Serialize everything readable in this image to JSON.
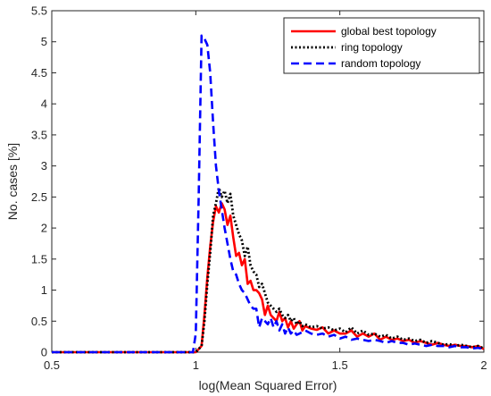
{
  "chart_data": {
    "type": "line",
    "title": "",
    "xlabel": "log(Mean Squared Error)",
    "ylabel": "No. cases [%]",
    "xlim": [
      0.5,
      2
    ],
    "ylim": [
      0,
      5.5
    ],
    "xticks": [
      0.5,
      1,
      1.5,
      2
    ],
    "xtick_labels": [
      "0.5",
      "1",
      "1.5",
      "2"
    ],
    "yticks": [
      0,
      0.5,
      1,
      1.5,
      2,
      2.5,
      3,
      3.5,
      4,
      4.5,
      5,
      5.5
    ],
    "ytick_labels": [
      "0",
      "0.5",
      "1",
      "1.5",
      "2",
      "2.5",
      "3",
      "3.5",
      "4",
      "4.5",
      "5",
      "5.5"
    ],
    "grid": false,
    "legend_position": "top-right",
    "series": [
      {
        "name": "global best topology",
        "color": "#ff0000",
        "style": "solid",
        "x": [
          0.5,
          1.0,
          1.02,
          1.03,
          1.04,
          1.05,
          1.06,
          1.07,
          1.08,
          1.09,
          1.1,
          1.11,
          1.12,
          1.13,
          1.14,
          1.15,
          1.16,
          1.17,
          1.18,
          1.19,
          1.2,
          1.21,
          1.22,
          1.23,
          1.24,
          1.25,
          1.26,
          1.27,
          1.28,
          1.29,
          1.3,
          1.31,
          1.32,
          1.33,
          1.34,
          1.35,
          1.36,
          1.37,
          1.38,
          1.4,
          1.42,
          1.44,
          1.46,
          1.48,
          1.5,
          1.52,
          1.54,
          1.56,
          1.58,
          1.6,
          1.62,
          1.64,
          1.66,
          1.68,
          1.7,
          1.72,
          1.74,
          1.76,
          1.78,
          1.8,
          1.82,
          1.84,
          1.86,
          1.88,
          1.9,
          1.92,
          1.94,
          1.96,
          1.98,
          2.0
        ],
        "y": [
          0,
          0,
          0.1,
          0.6,
          1.2,
          1.7,
          2.1,
          2.35,
          2.25,
          2.4,
          2.3,
          2.05,
          2.2,
          1.85,
          1.55,
          1.6,
          1.4,
          1.5,
          1.1,
          1.15,
          1.0,
          1.0,
          0.95,
          0.85,
          0.6,
          0.75,
          0.6,
          0.55,
          0.5,
          0.65,
          0.5,
          0.55,
          0.4,
          0.5,
          0.38,
          0.45,
          0.5,
          0.35,
          0.42,
          0.38,
          0.36,
          0.4,
          0.3,
          0.35,
          0.3,
          0.3,
          0.35,
          0.25,
          0.3,
          0.25,
          0.3,
          0.2,
          0.25,
          0.2,
          0.22,
          0.18,
          0.2,
          0.15,
          0.18,
          0.15,
          0.12,
          0.15,
          0.12,
          0.1,
          0.12,
          0.1,
          0.1,
          0.08,
          0.1,
          0.05
        ]
      },
      {
        "name": "ring topology",
        "color": "#000000",
        "style": "dotted",
        "x": [
          0.5,
          1.0,
          1.02,
          1.03,
          1.04,
          1.05,
          1.06,
          1.07,
          1.08,
          1.09,
          1.1,
          1.11,
          1.12,
          1.13,
          1.14,
          1.15,
          1.16,
          1.17,
          1.18,
          1.19,
          1.2,
          1.21,
          1.22,
          1.23,
          1.24,
          1.25,
          1.26,
          1.27,
          1.28,
          1.29,
          1.3,
          1.31,
          1.32,
          1.33,
          1.34,
          1.35,
          1.36,
          1.37,
          1.38,
          1.4,
          1.42,
          1.44,
          1.46,
          1.48,
          1.5,
          1.52,
          1.54,
          1.56,
          1.58,
          1.6,
          1.62,
          1.64,
          1.66,
          1.68,
          1.7,
          1.72,
          1.74,
          1.76,
          1.78,
          1.8,
          1.82,
          1.84,
          1.86,
          1.88,
          1.9,
          1.92,
          1.94,
          1.96,
          1.98,
          2.0
        ],
        "y": [
          0,
          0,
          0.1,
          0.5,
          1.1,
          1.6,
          2.2,
          2.4,
          2.65,
          2.5,
          2.6,
          2.4,
          2.55,
          2.2,
          2.05,
          1.9,
          1.8,
          1.55,
          1.7,
          1.4,
          1.3,
          1.25,
          1.05,
          1.1,
          0.95,
          0.8,
          0.75,
          0.7,
          0.65,
          0.7,
          0.6,
          0.55,
          0.6,
          0.5,
          0.55,
          0.45,
          0.5,
          0.42,
          0.45,
          0.4,
          0.42,
          0.38,
          0.4,
          0.35,
          0.38,
          0.32,
          0.4,
          0.3,
          0.35,
          0.28,
          0.3,
          0.25,
          0.28,
          0.22,
          0.25,
          0.2,
          0.22,
          0.18,
          0.2,
          0.15,
          0.18,
          0.15,
          0.12,
          0.13,
          0.1,
          0.12,
          0.1,
          0.08,
          0.1,
          0.06
        ]
      },
      {
        "name": "random topology",
        "color": "#0000ff",
        "style": "dashed",
        "x": [
          0.5,
          0.99,
          1.0,
          1.01,
          1.02,
          1.03,
          1.04,
          1.05,
          1.06,
          1.07,
          1.08,
          1.09,
          1.1,
          1.11,
          1.12,
          1.13,
          1.14,
          1.15,
          1.16,
          1.17,
          1.18,
          1.19,
          1.2,
          1.21,
          1.22,
          1.23,
          1.24,
          1.25,
          1.26,
          1.27,
          1.28,
          1.29,
          1.3,
          1.31,
          1.32,
          1.33,
          1.34,
          1.35,
          1.36,
          1.38,
          1.4,
          1.42,
          1.44,
          1.46,
          1.48,
          1.5,
          1.52,
          1.54,
          1.56,
          1.58,
          1.6,
          1.62,
          1.64,
          1.66,
          1.68,
          1.7,
          1.72,
          1.74,
          1.76,
          1.78,
          1.8,
          1.82,
          1.84,
          1.86,
          1.88,
          1.9,
          1.92,
          1.94,
          1.96,
          1.98,
          2.0
        ],
        "y": [
          0,
          0,
          0.3,
          2.5,
          5.1,
          5.05,
          4.95,
          4.5,
          3.7,
          3.0,
          2.6,
          2.3,
          2.0,
          1.75,
          1.5,
          1.3,
          1.25,
          1.1,
          1.0,
          0.95,
          0.85,
          0.75,
          0.7,
          0.7,
          0.4,
          0.55,
          0.5,
          0.45,
          0.55,
          0.4,
          0.5,
          0.35,
          0.45,
          0.3,
          0.4,
          0.3,
          0.35,
          0.28,
          0.3,
          0.35,
          0.3,
          0.28,
          0.3,
          0.25,
          0.28,
          0.22,
          0.25,
          0.2,
          0.22,
          0.2,
          0.18,
          0.2,
          0.18,
          0.15,
          0.18,
          0.15,
          0.15,
          0.12,
          0.14,
          0.12,
          0.1,
          0.12,
          0.1,
          0.1,
          0.08,
          0.1,
          0.08,
          0.08,
          0.06,
          0.07,
          0.05
        ]
      }
    ]
  }
}
